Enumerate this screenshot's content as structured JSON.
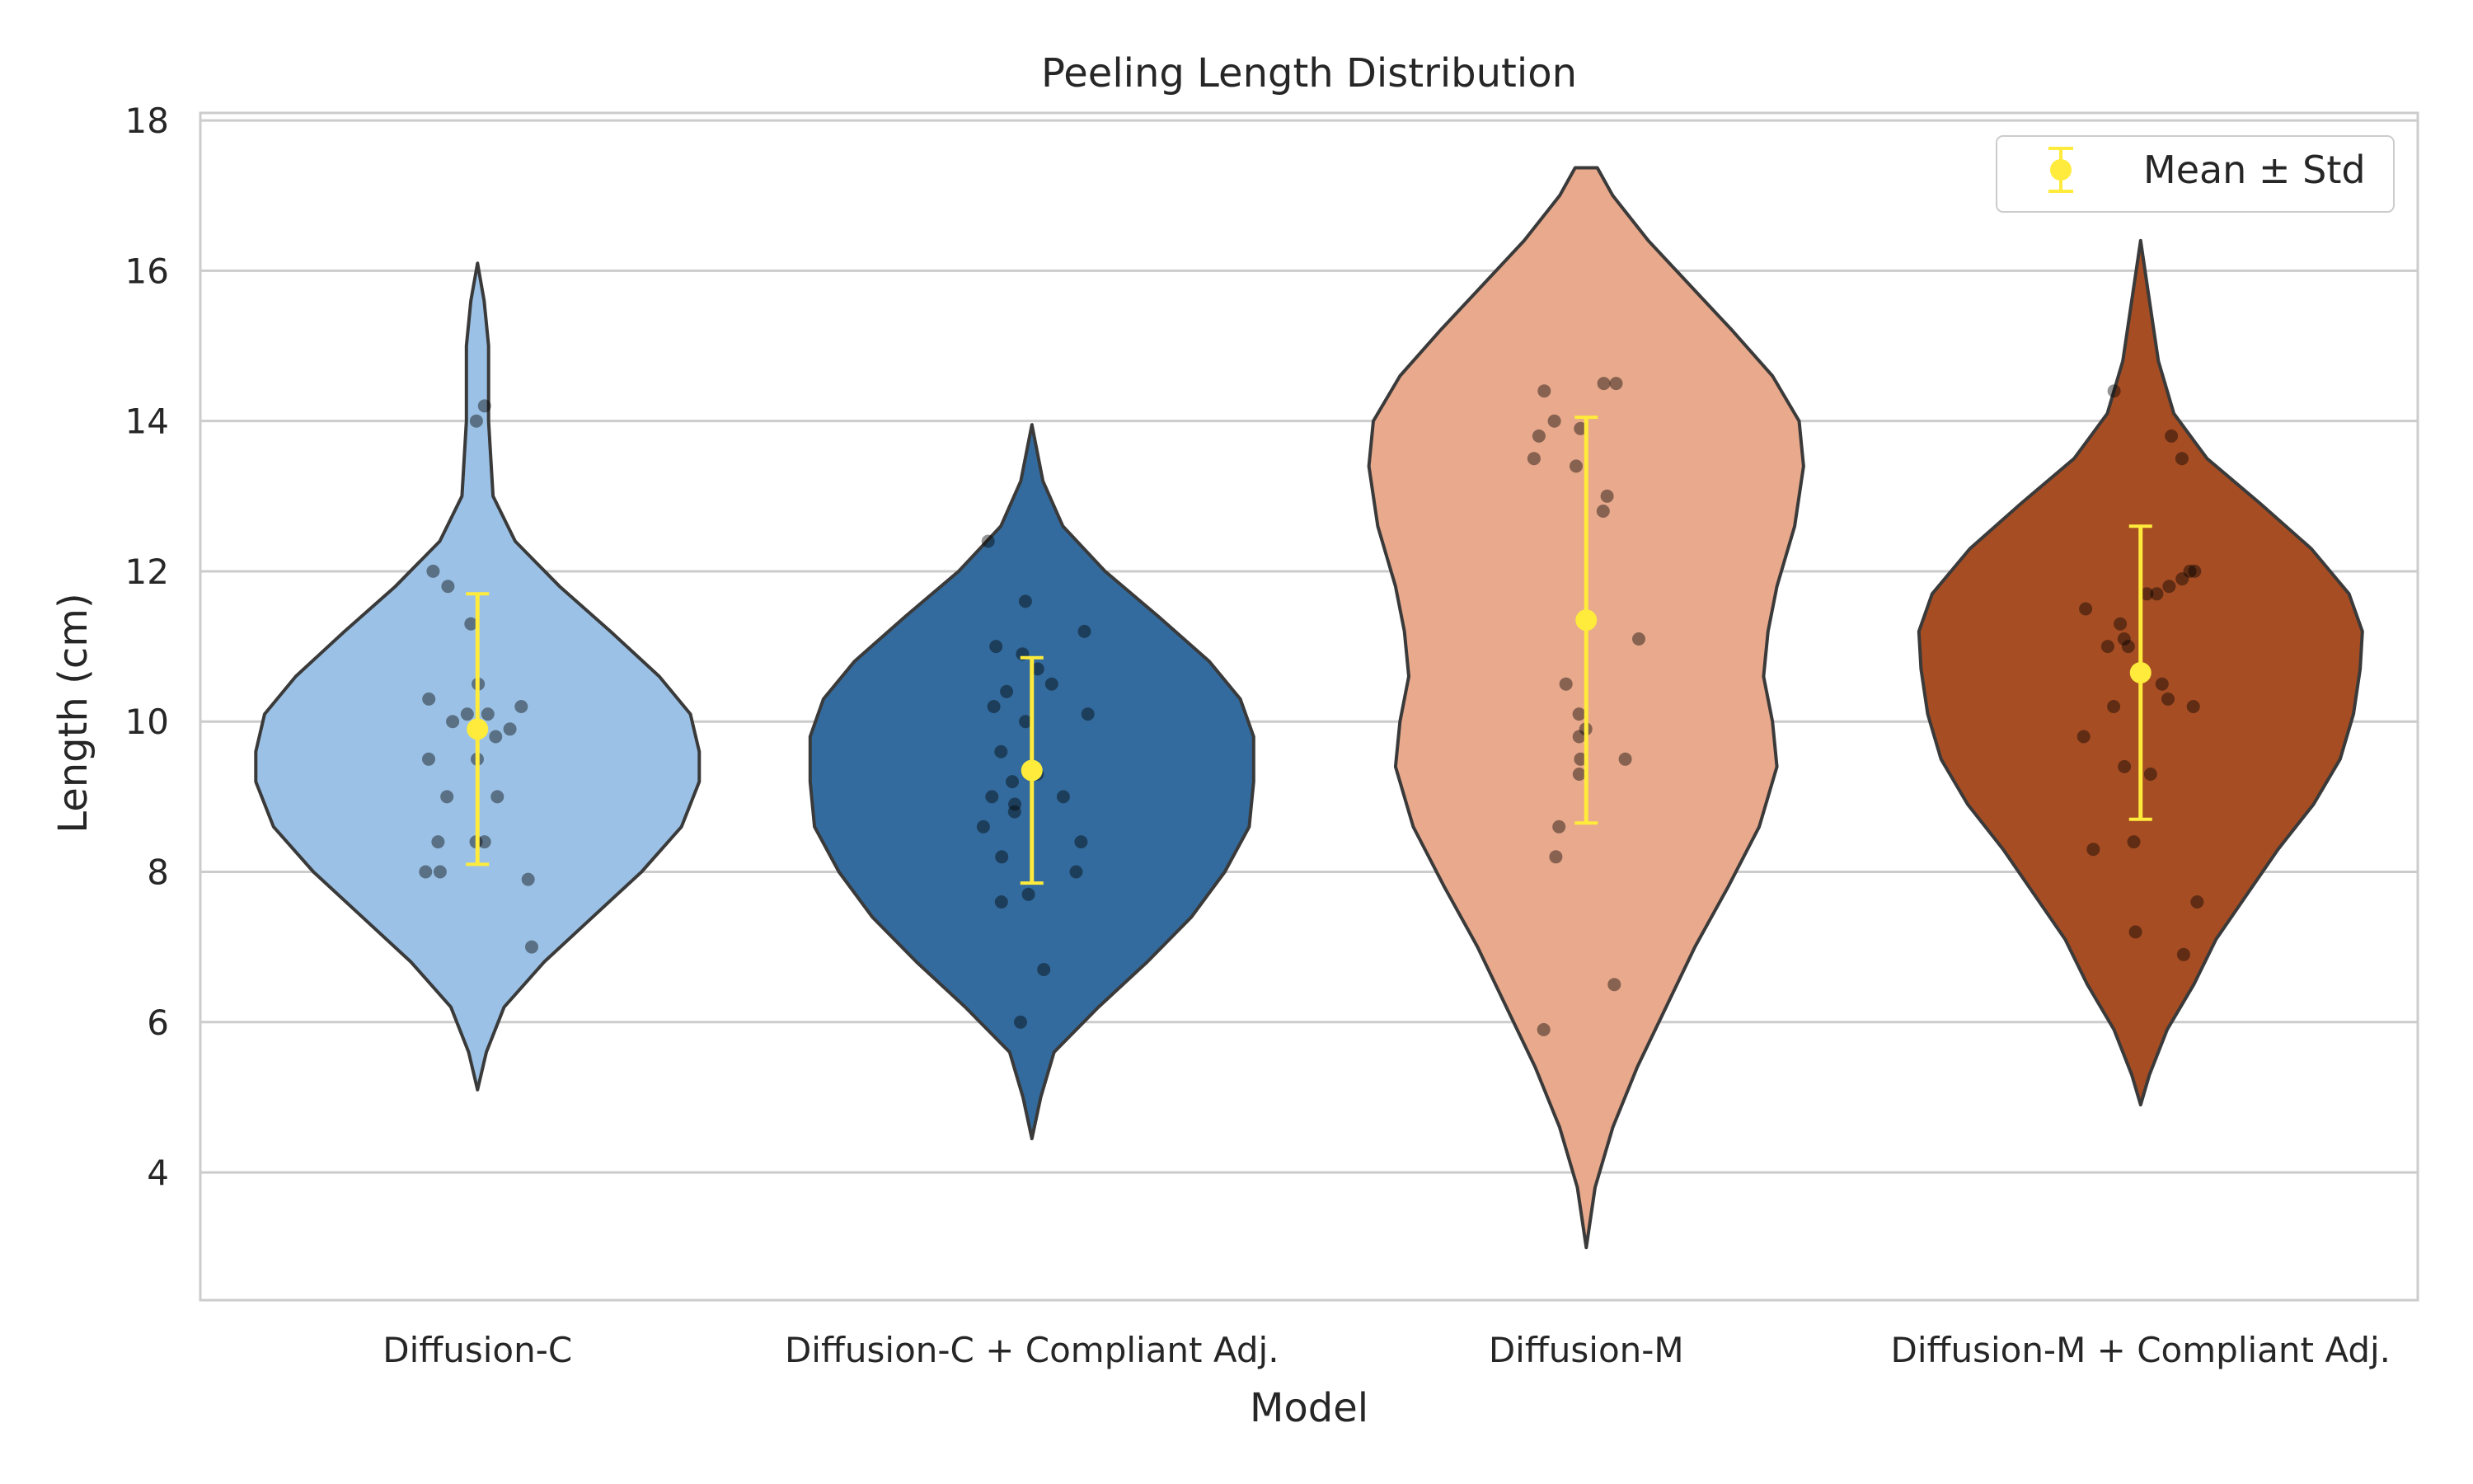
{
  "chart_data": {
    "type": "violin",
    "title": "Peeling Length Distribution",
    "xlabel": "Model",
    "ylabel": "Length (cm)",
    "ylim": [
      2.3,
      18.1
    ],
    "yticks": [
      "4",
      "6",
      "8",
      "10",
      "12",
      "14",
      "16",
      "18"
    ],
    "grid": "horizontal",
    "legend": {
      "position": "top-right",
      "label": "Mean ± Std",
      "marker_color": "#ffeb3b"
    },
    "categories": [
      "Diffusion-C",
      "Diffusion-C + Compliant Adj.",
      "Diffusion-M",
      "Diffusion-M + Compliant Adj."
    ],
    "colors": [
      "#9bc2e6",
      "#336b9e",
      "#e8a98c",
      "#a64d23"
    ],
    "series": [
      {
        "name": "Diffusion-C",
        "mean": 9.9,
        "std": 1.8,
        "kde": [
          [
            5.1,
            0.0
          ],
          [
            5.6,
            0.04
          ],
          [
            6.2,
            0.12
          ],
          [
            6.8,
            0.3
          ],
          [
            7.4,
            0.52
          ],
          [
            8.0,
            0.74
          ],
          [
            8.6,
            0.92
          ],
          [
            9.2,
            1.0
          ],
          [
            9.6,
            1.0
          ],
          [
            10.1,
            0.96
          ],
          [
            10.6,
            0.82
          ],
          [
            11.2,
            0.6
          ],
          [
            11.8,
            0.37
          ],
          [
            12.4,
            0.17
          ],
          [
            13.0,
            0.07
          ],
          [
            14.0,
            0.05
          ],
          [
            15.0,
            0.05
          ],
          [
            15.6,
            0.03
          ],
          [
            16.1,
            0.0
          ]
        ],
        "points": [
          14.0,
          14.2,
          12.0,
          11.8,
          11.3,
          10.5,
          10.3,
          10.2,
          10.1,
          10.1,
          10.0,
          9.9,
          9.8,
          9.5,
          9.5,
          9.0,
          9.0,
          8.4,
          8.4,
          8.4,
          8.0,
          8.0,
          7.9,
          7.0
        ]
      },
      {
        "name": "Diffusion-C + Compliant Adj.",
        "mean": 9.35,
        "std": 1.5,
        "kde": [
          [
            4.45,
            0.0
          ],
          [
            5.0,
            0.04
          ],
          [
            5.6,
            0.1
          ],
          [
            6.2,
            0.3
          ],
          [
            6.8,
            0.52
          ],
          [
            7.4,
            0.72
          ],
          [
            8.0,
            0.87
          ],
          [
            8.6,
            0.98
          ],
          [
            9.2,
            1.0
          ],
          [
            9.8,
            1.0
          ],
          [
            10.3,
            0.94
          ],
          [
            10.8,
            0.8
          ],
          [
            11.4,
            0.57
          ],
          [
            12.0,
            0.33
          ],
          [
            12.6,
            0.14
          ],
          [
            13.2,
            0.05
          ],
          [
            13.95,
            0.0
          ]
        ],
        "points": [
          12.4,
          11.6,
          11.2,
          11.0,
          10.9,
          10.7,
          10.5,
          10.4,
          10.2,
          10.1,
          10.0,
          9.6,
          9.3,
          9.2,
          9.0,
          9.0,
          8.9,
          8.8,
          8.6,
          8.4,
          8.2,
          8.0,
          7.7,
          7.6,
          6.7,
          6.0
        ]
      },
      {
        "name": "Diffusion-M",
        "mean": 11.35,
        "std": 2.7,
        "kde": [
          [
            3.0,
            0.0
          ],
          [
            3.8,
            0.04
          ],
          [
            4.6,
            0.12
          ],
          [
            5.4,
            0.23
          ],
          [
            6.2,
            0.36
          ],
          [
            7.0,
            0.49
          ],
          [
            7.8,
            0.64
          ],
          [
            8.6,
            0.78
          ],
          [
            9.4,
            0.86
          ],
          [
            10.0,
            0.84
          ],
          [
            10.6,
            0.8
          ],
          [
            11.2,
            0.82
          ],
          [
            11.8,
            0.86
          ],
          [
            12.6,
            0.94
          ],
          [
            13.4,
            0.98
          ],
          [
            14.0,
            0.96
          ],
          [
            14.6,
            0.84
          ],
          [
            15.2,
            0.66
          ],
          [
            15.8,
            0.47
          ],
          [
            16.4,
            0.28
          ],
          [
            17.0,
            0.12
          ],
          [
            17.37,
            0.05
          ],
          [
            17.37,
            0.0
          ]
        ],
        "points": [
          14.5,
          14.5,
          14.4,
          14.0,
          13.9,
          13.8,
          13.5,
          13.4,
          13.0,
          12.8,
          11.1,
          10.5,
          10.1,
          9.9,
          9.8,
          9.5,
          9.5,
          9.3,
          8.6,
          8.2,
          6.5,
          5.9
        ]
      },
      {
        "name": "Diffusion-M + Compliant Adj.",
        "mean": 10.65,
        "std": 1.95,
        "kde": [
          [
            4.9,
            0.0
          ],
          [
            5.3,
            0.04
          ],
          [
            5.9,
            0.12
          ],
          [
            6.5,
            0.24
          ],
          [
            7.1,
            0.34
          ],
          [
            7.7,
            0.48
          ],
          [
            8.3,
            0.62
          ],
          [
            8.9,
            0.78
          ],
          [
            9.5,
            0.9
          ],
          [
            10.1,
            0.96
          ],
          [
            10.7,
            0.99
          ],
          [
            11.2,
            1.0
          ],
          [
            11.7,
            0.94
          ],
          [
            12.3,
            0.77
          ],
          [
            12.9,
            0.54
          ],
          [
            13.5,
            0.3
          ],
          [
            14.1,
            0.15
          ],
          [
            14.8,
            0.08
          ],
          [
            15.6,
            0.04
          ],
          [
            16.4,
            0.0
          ]
        ],
        "points": [
          14.4,
          13.8,
          13.5,
          12.0,
          12.0,
          11.9,
          11.8,
          11.7,
          11.7,
          11.5,
          11.3,
          11.1,
          11.0,
          11.0,
          10.5,
          10.3,
          10.2,
          10.2,
          9.8,
          9.4,
          9.3,
          8.4,
          8.3,
          7.6,
          7.2,
          6.9
        ]
      }
    ]
  }
}
